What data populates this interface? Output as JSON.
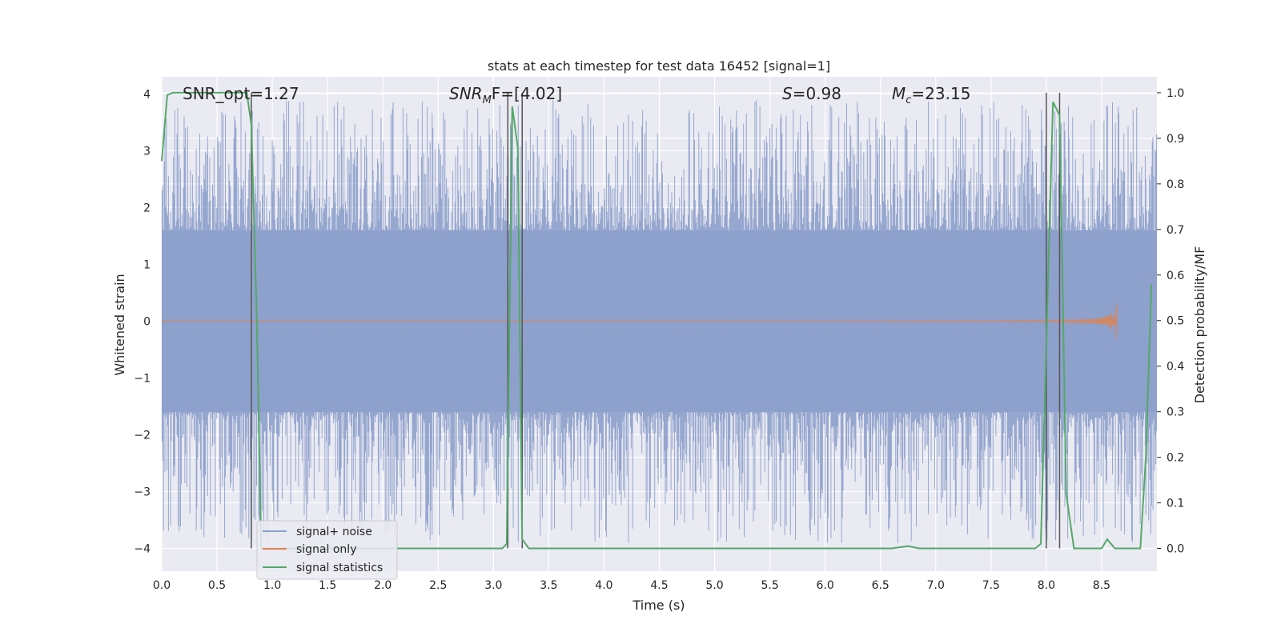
{
  "chart_data": {
    "type": "line",
    "title": "stats at each timestep for test data 16452 [signal=1]",
    "xlabel": "Time (s)",
    "ylabel_left": "Whitened strain",
    "ylabel_right": "Detection probability/MF",
    "xlim": [
      0.0,
      9.0
    ],
    "ylim_left": [
      -4.4,
      4.3
    ],
    "ylim_right": [
      -0.05,
      1.035
    ],
    "x_ticks": [
      "0.0",
      "0.5",
      "1.0",
      "1.5",
      "2.0",
      "2.5",
      "3.0",
      "3.5",
      "4.0",
      "4.5",
      "5.0",
      "5.5",
      "6.0",
      "6.5",
      "7.0",
      "7.5",
      "8.0",
      "8.5"
    ],
    "y_left_ticks": [
      "4",
      "3",
      "2",
      "1",
      "0",
      "−1",
      "−2",
      "−3",
      "−4"
    ],
    "y_right_ticks": [
      "1.0",
      "0.9",
      "0.8",
      "0.7",
      "0.6",
      "0.5",
      "0.4",
      "0.3",
      "0.2",
      "0.1",
      "0.0"
    ],
    "grid": true,
    "legend_position": "lower-left",
    "annotations": {
      "snr_opt": "SNR_opt=1.27",
      "snr_mf_italic": "SNR",
      "snr_mf_sub": "M",
      "snr_mf_rest": "F=[4.02]",
      "s_italic": "S",
      "s_rest": "=0.98",
      "mc_italic": "M",
      "mc_sub": "c",
      "mc_rest": "=23.15"
    },
    "series": [
      {
        "name": "signal+ noise",
        "color": "#8da0cb",
        "axis": "left",
        "description_values": {
          "core_band": [
            -1.6,
            1.6
          ],
          "max_spike": 3.95,
          "min_spike": -4.0
        }
      },
      {
        "name": "signal only",
        "color": "#dd8452",
        "axis": "left",
        "chirp_end_time": 8.65,
        "chirp_peak_amplitude": 0.3
      },
      {
        "name": "signal statistics",
        "color": "#55a868",
        "axis": "right",
        "x": [
          0.0,
          0.05,
          0.1,
          0.2,
          0.3,
          0.4,
          0.5,
          0.6,
          0.7,
          0.77,
          0.81,
          0.86,
          0.9,
          1.0,
          1.5,
          2.0,
          2.5,
          3.0,
          3.08,
          3.12,
          3.17,
          3.22,
          3.26,
          3.32,
          3.4,
          4.0,
          5.0,
          6.0,
          6.6,
          6.75,
          6.85,
          7.0,
          7.5,
          7.9,
          7.95,
          8.0,
          8.06,
          8.12,
          8.18,
          8.25,
          8.5,
          8.55,
          8.62,
          8.7,
          8.85,
          8.9,
          8.95
        ],
        "y": [
          0.85,
          0.995,
          1.0,
          1.0,
          1.0,
          1.0,
          1.0,
          1.0,
          1.0,
          1.0,
          0.93,
          0.5,
          0.0,
          0.0,
          0.0,
          0.0,
          0.0,
          0.0,
          0.0,
          0.01,
          0.97,
          0.88,
          0.02,
          0.0,
          0.0,
          0.0,
          0.0,
          0.0,
          0.0,
          0.005,
          0.0,
          0.0,
          0.0,
          0.0,
          0.01,
          0.45,
          0.98,
          0.95,
          0.12,
          0.0,
          0.0,
          0.02,
          0.0,
          0.0,
          0.0,
          0.2,
          0.58
        ]
      }
    ],
    "vertical_markers": [
      0.81,
      3.13,
      3.26,
      8.0,
      8.12
    ]
  }
}
